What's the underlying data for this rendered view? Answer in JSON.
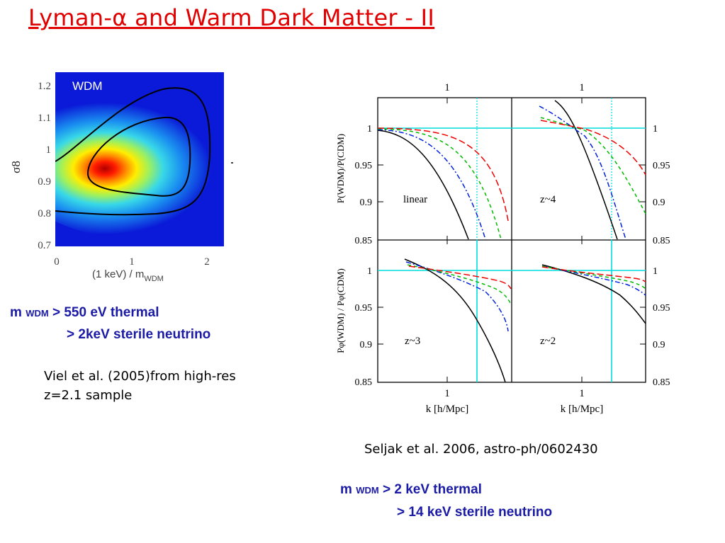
{
  "slide": {
    "title": "Lyman-α and Warm Dark Matter - II"
  },
  "left_plot": {
    "inset_label": "WDM",
    "y_axis_label": "σ8",
    "y_ticks": [
      "1.2",
      "1.1",
      "1",
      "0.9",
      "0.8",
      "0.7"
    ],
    "x_ticks": [
      "0",
      "1",
      "2"
    ],
    "x_axis_label_main": "(1 keV) / m",
    "x_axis_label_sub": "WDM"
  },
  "left_text": {
    "m": "m",
    "sub": "WDM",
    "line1": "> 550 eV thermal",
    "line2": ">  2keV  sterile neutrino"
  },
  "left_citation": {
    "line1": "Viel et al. (2005)from high-res",
    "line2": "z=2.1 sample"
  },
  "right_plot": {
    "top_ticks": [
      "1",
      "1"
    ],
    "y_ticks_left": [
      "1",
      "0.95",
      "0.9",
      "0.85"
    ],
    "y_ticks_right": [
      "1",
      "0.95",
      "0.9",
      "0.85"
    ],
    "x_ticks": [
      "1",
      "1"
    ],
    "x_label": "k [h/Mpc]",
    "y_label_top": "P(WDM)/P(CDM)",
    "y_label_bottom": "Pφ(WDM) / Pφ(CDM)",
    "panel_labels": [
      "linear",
      "z~4",
      "z~3",
      "z~2"
    ]
  },
  "right_citation": "Seljak et al. 2006, astro-ph/0602430",
  "right_text": {
    "m": "m",
    "sub": "WDM",
    "line1": "> 2 keV    thermal",
    "line2": ">  14 keV  sterile neutrino"
  },
  "colors": {
    "title": "#e00000",
    "conclusion_text": "#1a1aa6",
    "curve_black": "#000000",
    "curve_blue": "#0022dd",
    "curve_green": "#00bb00",
    "curve_red": "#ee0000",
    "reference_lines": "#00dddd"
  }
}
